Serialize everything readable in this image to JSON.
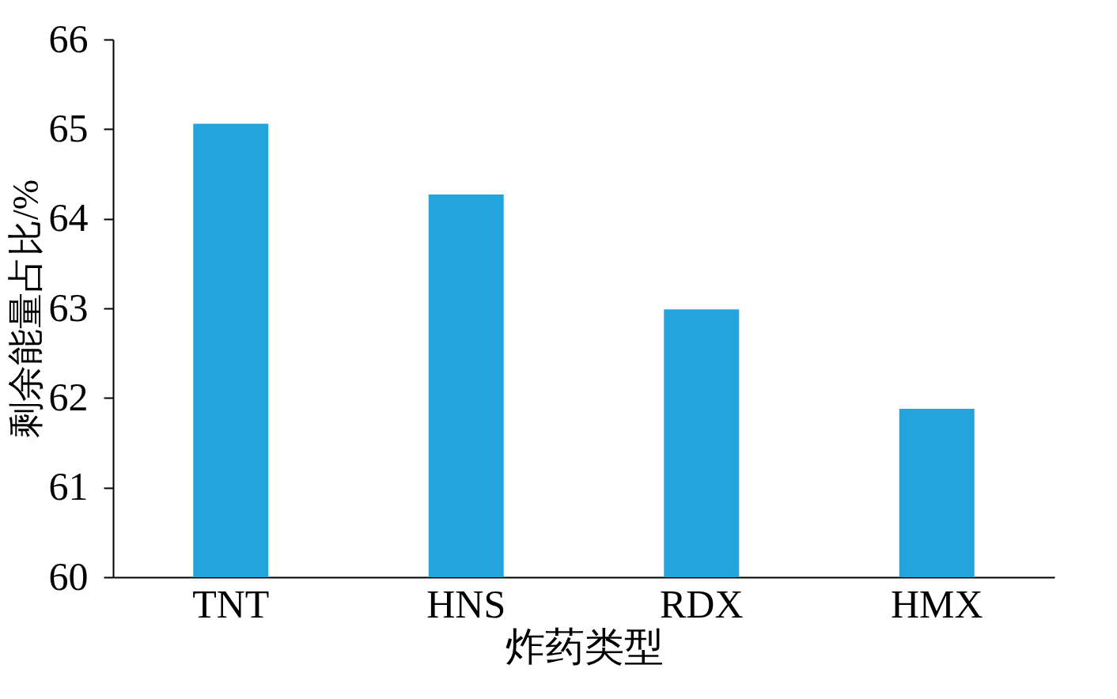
{
  "chart_data": {
    "type": "bar",
    "xlabel": "炸药类型",
    "ylabel": "剩余能量占比/%",
    "categories": [
      "TNT",
      "HNS",
      "RDX",
      "HMX"
    ],
    "values": [
      65.06,
      64.27,
      62.99,
      61.88
    ],
    "color": "#24a4dd",
    "ylim": [
      60,
      66
    ],
    "yticks": [
      60,
      61,
      62,
      63,
      64,
      65,
      66
    ],
    "grid": false
  }
}
